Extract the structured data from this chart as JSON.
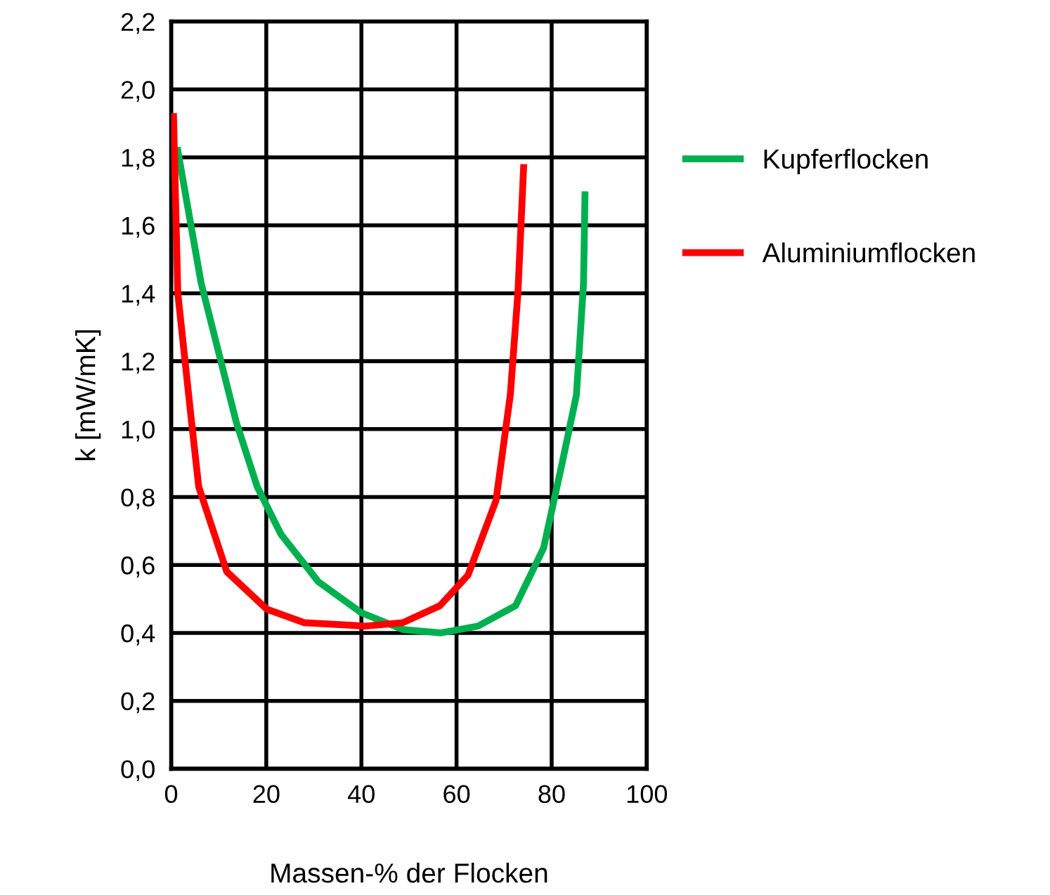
{
  "chart_data": {
    "type": "line",
    "xlabel": "Massen-% der Flocken",
    "ylabel": "k [mW/mK]",
    "xlim": [
      0,
      100
    ],
    "xticks": [
      0,
      20,
      40,
      60,
      80,
      100
    ],
    "ylim": [
      0,
      2.2
    ],
    "yticks": [
      {
        "value": 0,
        "label": "0,0"
      },
      {
        "value": 0.2,
        "label": "0,2"
      },
      {
        "value": 0.4,
        "label": "0,4"
      },
      {
        "value": 0.6,
        "label": "0,6"
      },
      {
        "value": 0.8,
        "label": "0,8"
      },
      {
        "value": 1.0,
        "label": "1,0"
      },
      {
        "value": 1.2,
        "label": "1,2"
      },
      {
        "value": 1.4,
        "label": "1,4"
      },
      {
        "value": 1.6,
        "label": "1,6"
      },
      {
        "value": 1.8,
        "label": "1,8"
      },
      {
        "value": 2.0,
        "label": "2,0"
      },
      {
        "value": 2.2,
        "label": "2,2"
      }
    ],
    "grid": true,
    "legend": "right",
    "marker": "none",
    "line_style": "solid",
    "series": [
      {
        "name": "Kupferflocken",
        "color": "#00b050",
        "x": [
          1.4,
          6.3,
          13.7,
          18.1,
          23.1,
          31,
          39.9,
          48.7,
          56.6,
          64.5,
          72.4,
          78.3,
          82.2,
          85.2,
          86.7,
          87
        ],
        "values": [
          1.82,
          1.43,
          1.02,
          0.83,
          0.69,
          0.55,
          0.46,
          0.41,
          0.4,
          0.42,
          0.48,
          0.65,
          0.9,
          1.1,
          1.43,
          1.69
        ]
      },
      {
        "name": "Aluminiumflocken",
        "color": "#ff0000",
        "x": [
          0.5,
          1.4,
          4.3,
          5.8,
          11.7,
          20.1,
          28,
          40.8,
          48.7,
          56.5,
          62.4,
          68.3,
          71.3,
          72.9,
          74.1
        ],
        "values": [
          1.92,
          1.4,
          1.02,
          0.83,
          0.58,
          0.47,
          0.43,
          0.42,
          0.43,
          0.48,
          0.57,
          0.79,
          1.1,
          1.4,
          1.77
        ]
      }
    ]
  }
}
